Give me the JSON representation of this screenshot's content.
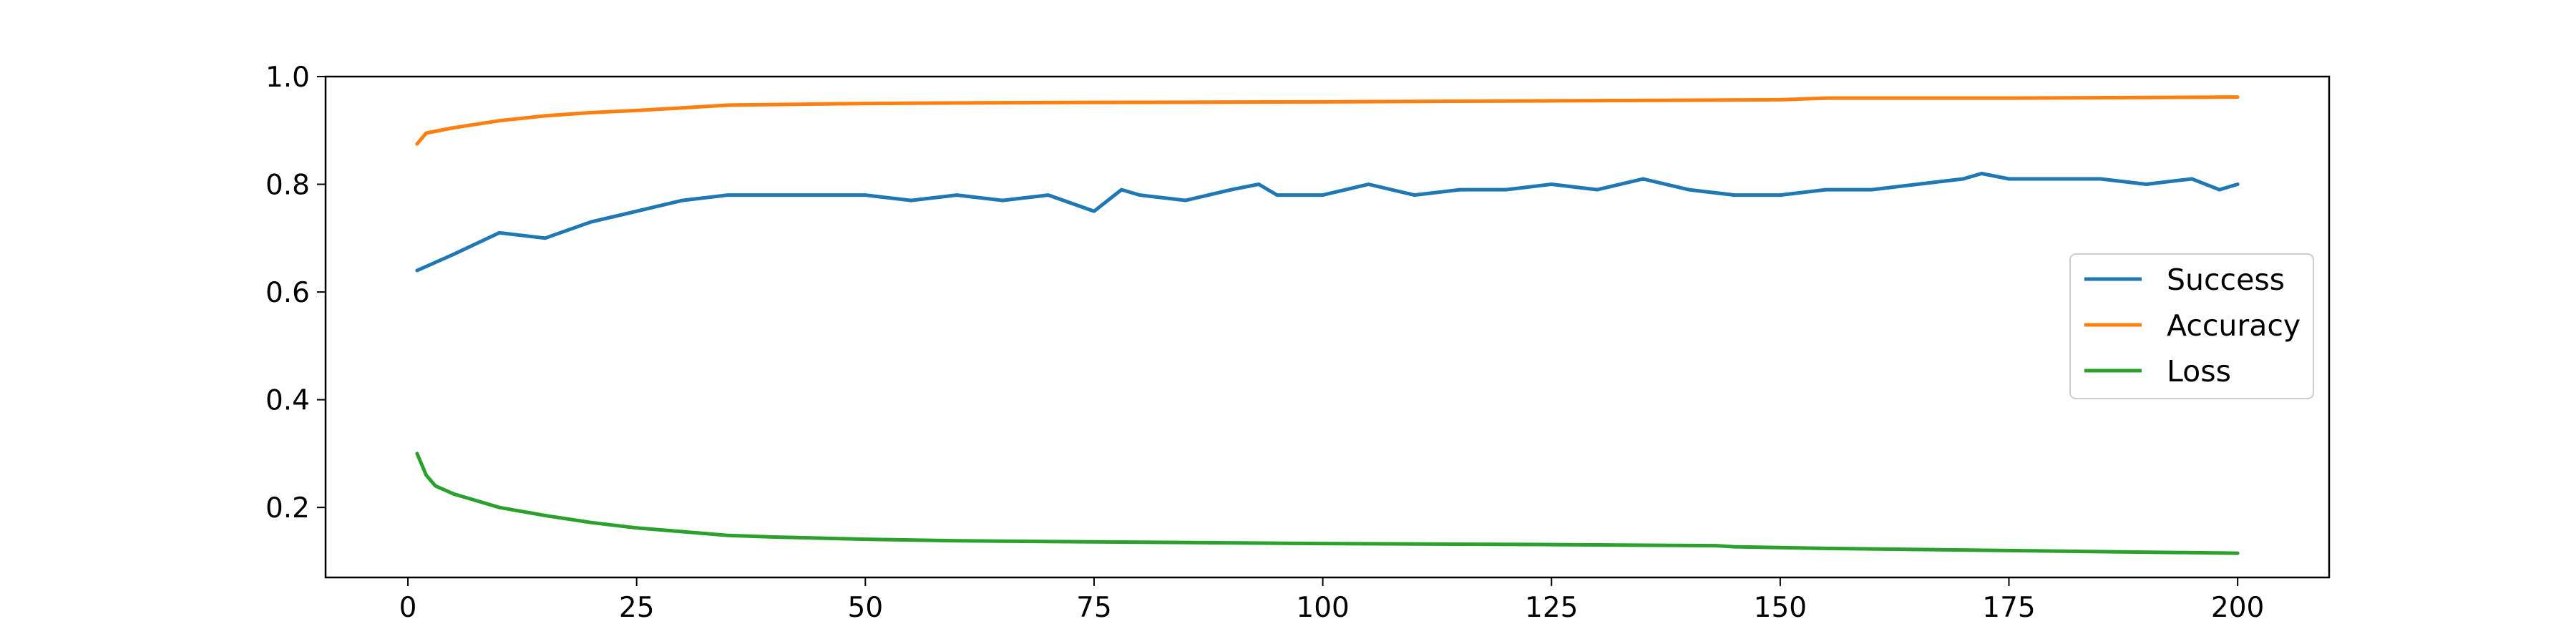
{
  "chart_data": {
    "type": "line",
    "title": "",
    "xlabel": "",
    "ylabel": "",
    "xlim": [
      -9,
      210
    ],
    "ylim": [
      0.07,
      1.0
    ],
    "xticks": [
      0,
      25,
      50,
      75,
      100,
      125,
      150,
      175,
      200
    ],
    "xtick_labels": [
      "0",
      "25",
      "50",
      "75",
      "100",
      "125",
      "150",
      "175",
      "200"
    ],
    "yticks": [
      0.2,
      0.4,
      0.6,
      0.8,
      1.0
    ],
    "ytick_labels": [
      "0.2",
      "0.4",
      "0.6",
      "0.8",
      "1.0"
    ],
    "grid": false,
    "legend_position": "center-right",
    "series": [
      {
        "name": "Success",
        "color": "#1f77b4",
        "x": [
          1,
          5,
          10,
          15,
          20,
          25,
          30,
          35,
          40,
          45,
          50,
          55,
          60,
          65,
          70,
          75,
          78,
          80,
          85,
          90,
          93,
          95,
          100,
          105,
          110,
          115,
          120,
          125,
          130,
          135,
          140,
          145,
          150,
          155,
          160,
          165,
          170,
          172,
          175,
          180,
          185,
          190,
          195,
          198,
          200
        ],
        "y": [
          0.64,
          0.67,
          0.71,
          0.7,
          0.73,
          0.75,
          0.77,
          0.78,
          0.78,
          0.78,
          0.78,
          0.77,
          0.78,
          0.77,
          0.78,
          0.75,
          0.79,
          0.78,
          0.77,
          0.79,
          0.8,
          0.78,
          0.78,
          0.8,
          0.78,
          0.79,
          0.79,
          0.8,
          0.79,
          0.81,
          0.79,
          0.78,
          0.78,
          0.79,
          0.79,
          0.8,
          0.81,
          0.82,
          0.81,
          0.81,
          0.81,
          0.8,
          0.81,
          0.79,
          0.8
        ]
      },
      {
        "name": "Accuracy",
        "color": "#ff7f0e",
        "x": [
          1,
          2,
          5,
          10,
          15,
          20,
          25,
          30,
          35,
          40,
          50,
          60,
          75,
          100,
          125,
          150,
          155,
          175,
          200
        ],
        "y": [
          0.875,
          0.895,
          0.905,
          0.918,
          0.927,
          0.933,
          0.937,
          0.942,
          0.947,
          0.948,
          0.95,
          0.951,
          0.952,
          0.953,
          0.955,
          0.957,
          0.96,
          0.96,
          0.962
        ]
      },
      {
        "name": "Loss",
        "color": "#2ca02c",
        "x": [
          1,
          2,
          3,
          5,
          8,
          10,
          15,
          20,
          25,
          30,
          35,
          40,
          50,
          60,
          75,
          100,
          125,
          143,
          145,
          155,
          175,
          200
        ],
        "y": [
          0.3,
          0.26,
          0.24,
          0.225,
          0.21,
          0.2,
          0.185,
          0.172,
          0.162,
          0.155,
          0.148,
          0.145,
          0.141,
          0.138,
          0.136,
          0.133,
          0.131,
          0.129,
          0.127,
          0.124,
          0.12,
          0.115
        ]
      }
    ]
  }
}
